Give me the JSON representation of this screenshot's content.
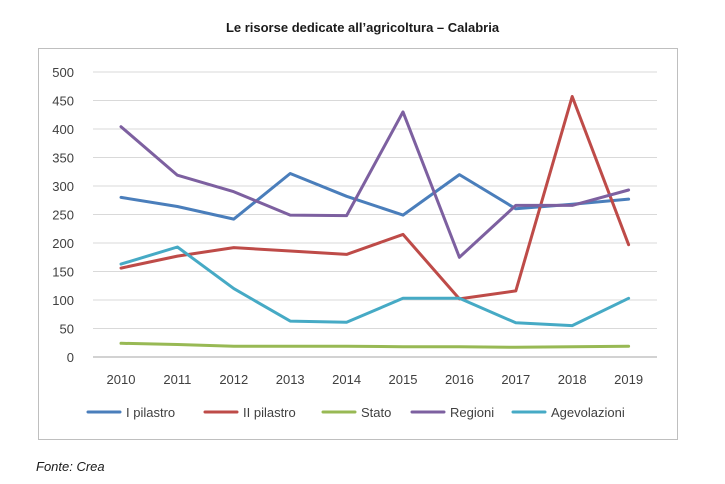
{
  "title": "Le risorse dedicate all’agricoltura – Calabria",
  "source": "Fonte: Crea",
  "chart_data": {
    "type": "line",
    "title": "Le risorse dedicate all’agricoltura – Calabria",
    "xlabel": "",
    "ylabel": "",
    "x": [
      "2010",
      "2011",
      "2012",
      "2013",
      "2014",
      "2015",
      "2016",
      "2017",
      "2018",
      "2019"
    ],
    "ylim": [
      0,
      500
    ],
    "yticks": [
      0,
      50,
      100,
      150,
      200,
      250,
      300,
      350,
      400,
      450,
      500
    ],
    "grid": true,
    "legend_position": "bottom",
    "series": [
      {
        "name": "I pilastro",
        "color": "#4a7ebb",
        "values": [
          280,
          264,
          242,
          322,
          282,
          249,
          320,
          260,
          268,
          277
        ]
      },
      {
        "name": "II pilastro",
        "color": "#be4b48",
        "values": [
          156,
          177,
          192,
          186,
          180,
          215,
          102,
          116,
          457,
          197
        ]
      },
      {
        "name": "Stato",
        "color": "#98b954",
        "values": [
          24,
          22,
          19,
          19,
          19,
          18,
          18,
          17,
          18,
          19
        ]
      },
      {
        "name": "Regioni",
        "color": "#7d60a0",
        "values": [
          404,
          319,
          290,
          249,
          248,
          430,
          175,
          266,
          266,
          293
        ]
      },
      {
        "name": "Agevolazioni",
        "color": "#46aac5",
        "values": [
          163,
          193,
          120,
          63,
          61,
          103,
          103,
          60,
          55,
          103
        ]
      }
    ]
  }
}
